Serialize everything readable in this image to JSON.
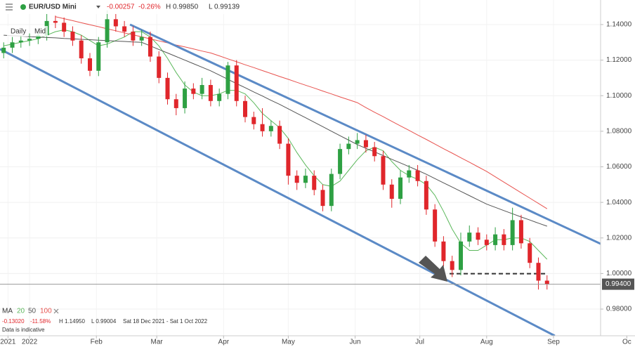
{
  "chart_data": {
    "type": "candlestick",
    "title": "EUR/USD Mini",
    "change": "-0.00257",
    "change_pct": "-0.26%",
    "high_label": "H 0.99850",
    "low_label": "L 0.99139",
    "buttons": [
      "Daily",
      "Mid"
    ],
    "ma_label": "MA",
    "up_color": "#2ea043",
    "down_color": "#e0262b",
    "x": [
      -12,
      -8,
      -4,
      0,
      4,
      8,
      12,
      16,
      20,
      24,
      28,
      32,
      36,
      40,
      44,
      48,
      52,
      56,
      60,
      64,
      68,
      72,
      76,
      80,
      84,
      88,
      92,
      96,
      100,
      104,
      108,
      112,
      116,
      120,
      124,
      128,
      132,
      136,
      140,
      144,
      148,
      152,
      156,
      160,
      164,
      168,
      172,
      176,
      180,
      184,
      188,
      192,
      196,
      200,
      204,
      208,
      212,
      216,
      220,
      224,
      228,
      232,
      236,
      240
    ],
    "open": [
      1.124,
      1.127,
      1.13,
      1.131,
      1.132,
      1.134,
      1.142,
      1.141,
      1.136,
      1.131,
      1.121,
      1.114,
      1.13,
      1.143,
      1.139,
      1.136,
      1.131,
      1.133,
      1.122,
      1.11,
      1.098,
      1.093,
      1.104,
      1.101,
      1.106,
      1.097,
      1.101,
      1.117,
      1.097,
      1.088,
      1.084,
      1.08,
      1.083,
      1.073,
      1.055,
      1.051,
      1.055,
      1.047,
      1.038,
      1.056,
      1.07,
      1.073,
      1.075,
      1.071,
      1.066,
      1.05,
      1.042,
      1.054,
      1.058,
      1.052,
      1.036,
      1.018,
      1.007,
      1.002,
      1.018,
      1.023,
      1.019,
      1.016,
      1.022,
      1.016,
      1.03,
      1.017,
      1.006,
      0.996
    ],
    "high": [
      1.13,
      1.133,
      1.134,
      1.135,
      1.137,
      1.146,
      1.145,
      1.144,
      1.139,
      1.134,
      1.124,
      1.133,
      1.148,
      1.146,
      1.142,
      1.139,
      1.137,
      1.136,
      1.125,
      1.113,
      1.101,
      1.108,
      1.107,
      1.11,
      1.109,
      1.104,
      1.119,
      1.12,
      1.1,
      1.091,
      1.093,
      1.086,
      1.086,
      1.076,
      1.058,
      1.059,
      1.058,
      1.05,
      1.059,
      1.073,
      1.077,
      1.079,
      1.078,
      1.074,
      1.069,
      1.053,
      1.058,
      1.061,
      1.061,
      1.055,
      1.039,
      1.021,
      1.01,
      1.023,
      1.027,
      1.026,
      1.022,
      1.026,
      1.025,
      1.037,
      1.033,
      1.02,
      1.009,
      0.999
    ],
    "low": [
      1.121,
      1.124,
      1.127,
      1.128,
      1.129,
      1.131,
      1.138,
      1.133,
      1.128,
      1.118,
      1.111,
      1.111,
      1.127,
      1.136,
      1.133,
      1.128,
      1.128,
      1.119,
      1.107,
      1.095,
      1.089,
      1.09,
      1.098,
      1.098,
      1.094,
      1.094,
      1.098,
      1.094,
      1.085,
      1.081,
      1.077,
      1.077,
      1.07,
      1.05,
      1.047,
      1.048,
      1.044,
      1.035,
      1.035,
      1.053,
      1.067,
      1.07,
      1.068,
      1.063,
      1.047,
      1.037,
      1.039,
      1.051,
      1.049,
      1.033,
      1.015,
      1.004,
      0.998,
      0.999,
      1.015,
      1.016,
      1.013,
      1.013,
      1.013,
      1.013,
      1.014,
      1.003,
      0.991,
      0.991
    ],
    "close": [
      1.127,
      1.13,
      1.131,
      1.132,
      1.134,
      1.142,
      1.141,
      1.136,
      1.131,
      1.121,
      1.114,
      1.13,
      1.143,
      1.139,
      1.136,
      1.131,
      1.133,
      1.122,
      1.11,
      1.098,
      1.093,
      1.104,
      1.101,
      1.106,
      1.097,
      1.101,
      1.117,
      1.097,
      1.088,
      1.084,
      1.08,
      1.083,
      1.073,
      1.055,
      1.051,
      1.055,
      1.047,
      1.038,
      1.056,
      1.07,
      1.073,
      1.075,
      1.071,
      1.066,
      1.05,
      1.042,
      1.054,
      1.058,
      1.052,
      1.036,
      1.018,
      1.007,
      1.002,
      1.018,
      1.023,
      1.019,
      1.016,
      1.022,
      1.016,
      1.03,
      1.017,
      1.006,
      0.996,
      0.994
    ],
    "series": [
      {
        "name": "20",
        "color": "#5cb85c",
        "values": [
          1.128,
          1.129,
          1.13,
          1.131,
          1.132,
          1.134,
          1.136,
          1.137,
          1.136,
          1.134,
          1.131,
          1.128,
          1.129,
          1.131,
          1.133,
          1.136,
          1.136,
          1.133,
          1.128,
          1.121,
          1.113,
          1.106,
          1.102,
          1.1,
          1.1,
          1.101,
          1.103,
          1.103,
          1.101,
          1.096,
          1.09,
          1.086,
          1.082,
          1.076,
          1.068,
          1.061,
          1.055,
          1.05,
          1.049,
          1.052,
          1.058,
          1.064,
          1.069,
          1.071,
          1.069,
          1.063,
          1.058,
          1.055,
          1.053,
          1.05,
          1.044,
          1.035,
          1.025,
          1.017,
          1.013,
          1.013,
          1.016,
          1.019,
          1.019,
          1.02,
          1.02,
          1.018,
          1.013,
          1.008
        ]
      },
      {
        "name": "50",
        "color": "#555555",
        "values": [
          1.134,
          1.1337,
          1.1335,
          1.1332,
          1.133,
          1.1327,
          1.1325,
          1.1322,
          1.132,
          1.1317,
          1.1315,
          1.1312,
          1.131,
          1.1307,
          1.1305,
          1.1302,
          1.13,
          1.128,
          1.126,
          1.124,
          1.122,
          1.12,
          1.118,
          1.116,
          1.114,
          1.1116,
          1.1092,
          1.1068,
          1.1045,
          1.1021,
          1.0998,
          1.0974,
          1.0951,
          1.0926,
          1.0901,
          1.0876,
          1.0851,
          1.0826,
          1.08,
          1.0775,
          1.075,
          1.0725,
          1.0704,
          1.0684,
          1.0663,
          1.0642,
          1.0622,
          1.0601,
          1.058,
          1.0558,
          1.0534,
          1.051,
          1.0486,
          1.0462,
          1.0438,
          1.0414,
          1.039,
          1.0372,
          1.0354,
          1.0336,
          1.0318,
          1.0301,
          1.0283,
          1.0266
        ]
      },
      {
        "name": "100",
        "color": "#e8534f",
        "values": [
          null,
          null,
          null,
          null,
          null,
          null,
          1.1444,
          1.1433,
          1.1422,
          1.141,
          1.1399,
          1.1388,
          1.1376,
          1.1365,
          1.1353,
          1.1342,
          1.1331,
          1.1319,
          1.1308,
          1.1297,
          1.1285,
          1.1274,
          1.1263,
          1.1251,
          1.124,
          1.1224,
          1.1207,
          1.1191,
          1.1174,
          1.1158,
          1.1141,
          1.1125,
          1.1108,
          1.1092,
          1.1075,
          1.1059,
          1.1043,
          1.1026,
          1.101,
          1.0993,
          1.0977,
          1.0961,
          1.0933,
          1.0907,
          1.0882,
          1.0856,
          1.083,
          1.0805,
          1.0779,
          1.0754,
          1.0728,
          1.0702,
          1.0677,
          1.0651,
          1.0626,
          1.06,
          1.0574,
          1.0544,
          1.0514,
          1.0484,
          1.0454,
          1.0424,
          1.0394,
          1.0364
        ]
      }
    ],
    "trendlines": [
      {
        "x": [
          46.6,
          280.8
        ],
        "y": [
          1.14,
          1.0077
        ],
        "color": "#5b8ac6",
        "dashed": false
      },
      {
        "x": [
          -13.7,
          243.6
        ],
        "y": [
          1.1262,
          0.965
        ],
        "color": "#5b8ac6",
        "dashed": false
      },
      {
        "x": [
          194.8,
          240.4
        ],
        "y": [
          0.9999,
          0.9999
        ],
        "color": "#333333",
        "dashed": true
      }
    ],
    "last": {
      "value": 0.994,
      "label": "0.99400"
    },
    "xlim": [
      -13.7,
      280.8
    ],
    "xticks": [
      {
        "value": -10,
        "label": "2021"
      },
      {
        "value": 0,
        "label": "2022"
      },
      {
        "value": 31,
        "label": "Feb"
      },
      {
        "value": 59,
        "label": "Mar"
      },
      {
        "value": 90,
        "label": "Apr"
      },
      {
        "value": 120,
        "label": "May"
      },
      {
        "value": 151,
        "label": "Jun"
      },
      {
        "value": 181,
        "label": "Jul"
      },
      {
        "value": 212,
        "label": "Aug"
      },
      {
        "value": 243,
        "label": "Sep"
      },
      {
        "value": 277,
        "label": "Oc"
      }
    ],
    "ylim": [
      0.965,
      1.1538
    ],
    "yticks": [
      {
        "value": 0.98,
        "label": "0.98000"
      },
      {
        "value": 1.0,
        "label": "1.00000"
      },
      {
        "value": 1.02,
        "label": "1.02000"
      },
      {
        "value": 1.04,
        "label": "1.04000"
      },
      {
        "value": 1.06,
        "label": "1.06000"
      },
      {
        "value": 1.08,
        "label": "1.08000"
      },
      {
        "value": 1.1,
        "label": "1.10000"
      },
      {
        "value": 1.12,
        "label": "1.12000"
      },
      {
        "value": 1.14,
        "label": "1.14000"
      }
    ],
    "grid": true,
    "footer": {
      "change": "-0.13020",
      "change_pct": "-11.58%",
      "high": "H 1.14950",
      "low": "L 0.99004",
      "range": "Sat 18 Dec 2021 - Sat 1 Oct 2022",
      "note": "Data is indicative"
    }
  }
}
